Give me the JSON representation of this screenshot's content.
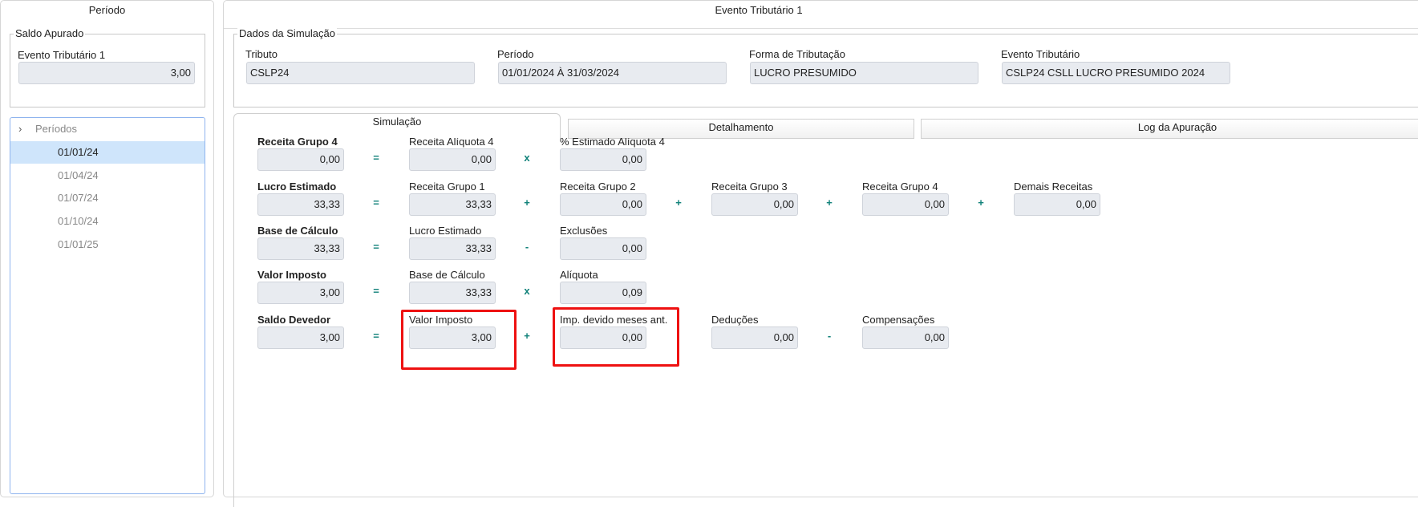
{
  "left": {
    "title": "Período",
    "saldo": {
      "legend": "Saldo Apurado",
      "label": "Evento Tributário 1",
      "value": "3,00"
    },
    "tree": {
      "root": "Períodos",
      "items": [
        "01/01/24",
        "01/04/24",
        "01/07/24",
        "01/10/24",
        "01/01/25"
      ],
      "selected": "01/01/24"
    }
  },
  "right": {
    "title": "Evento Tributário 1",
    "dados": {
      "legend": "Dados da Simulação",
      "fields": [
        {
          "label": "Tributo",
          "value": "CSLP24"
        },
        {
          "label": "Período",
          "value": "01/01/2024 À 31/03/2024"
        },
        {
          "label": "Forma de Tributação",
          "value": "LUCRO PRESUMIDO"
        },
        {
          "label": "Evento Tributário",
          "value": "CSLP24 CSLL LUCRO PRESUMIDO 2024"
        }
      ]
    },
    "tabs": [
      {
        "label": "Simulação",
        "active": true
      },
      {
        "label": "Detalhamento"
      },
      {
        "label": "Log da Apuração"
      }
    ],
    "rows": [
      {
        "label": "Receita Grupo 4",
        "value": "0,00",
        "terms": [
          {
            "label": "Receita Alíquota 4",
            "value": "0,00"
          },
          {
            "op": "x",
            "label": "% Estimado Alíquota 4",
            "value": "0,00"
          }
        ]
      },
      {
        "label": "Lucro Estimado",
        "value": "33,33",
        "terms": [
          {
            "label": "Receita Grupo 1",
            "value": "33,33"
          },
          {
            "op": "+",
            "label": "Receita Grupo 2",
            "value": "0,00"
          },
          {
            "op": "+",
            "label": "Receita Grupo 3",
            "value": "0,00"
          },
          {
            "op": "+",
            "label": "Receita Grupo 4",
            "value": "0,00"
          },
          {
            "op": "+",
            "label": "Demais Receitas",
            "value": "0,00"
          }
        ]
      },
      {
        "label": "Base de Cálculo",
        "value": "33,33",
        "terms": [
          {
            "label": "Lucro Estimado",
            "value": "33,33"
          },
          {
            "op": "-",
            "label": "Exclusões",
            "value": "0,00"
          }
        ]
      },
      {
        "label": "Valor Imposto",
        "value": "3,00",
        "terms": [
          {
            "label": "Base de Cálculo",
            "value": "33,33"
          },
          {
            "op": "x",
            "label": "Alíquota",
            "value": "0,09"
          }
        ]
      },
      {
        "label": "Saldo Devedor",
        "value": "3,00",
        "terms": [
          {
            "label": "Valor Imposto",
            "value": "3,00",
            "highlight": true
          },
          {
            "op": "+",
            "label": "Imp. devido meses ant.",
            "value": "0,00",
            "highlight": true
          },
          {
            "op": "",
            "label": "Deduções",
            "value": "0,00"
          },
          {
            "op": "-",
            "label": "Compensações",
            "value": "0,00"
          }
        ]
      }
    ],
    "eq": "=",
    "highlight_color": "#ee1111",
    "operator_color": "#11827a"
  }
}
